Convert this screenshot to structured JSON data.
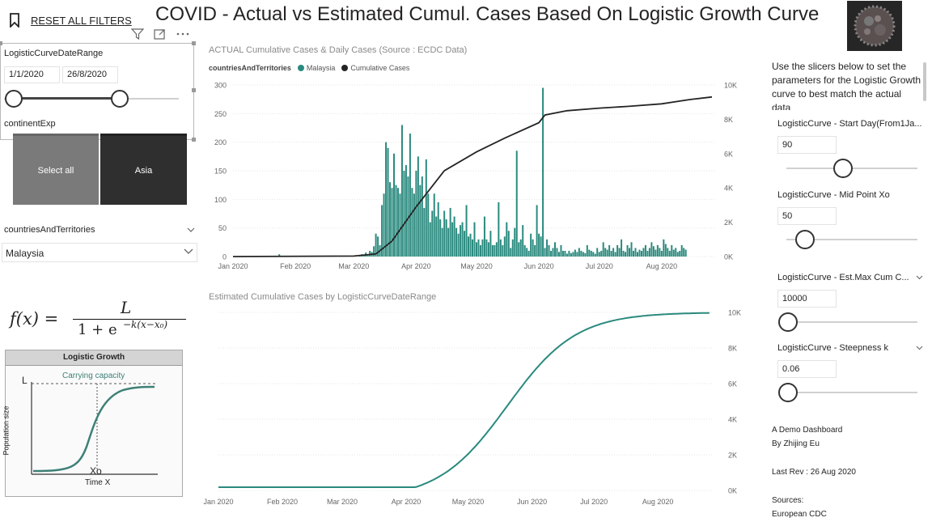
{
  "header": {
    "reset_label": "RESET ALL FILTERS",
    "title": "COVID - Actual vs Estimated Cumul. Cases Based On Logistic Growth Curve"
  },
  "date_slicer": {
    "title": "LogisticCurveDateRange",
    "start_date": "1/1/2020",
    "end_date": "26/8/2020"
  },
  "continent_slicer": {
    "title": "continentExp",
    "tiles": [
      "Select all",
      "Asia"
    ]
  },
  "country_slicer": {
    "title": "countriesAndTerritories",
    "selected": "Malaysia"
  },
  "formula": {
    "lhs": "f(x) =",
    "numerator": "L",
    "denominator": "1 + e",
    "exponent": "−k(x−x₀)"
  },
  "logistic_diagram": {
    "title": "Logistic Growth",
    "carrying_capacity": "Carrying capacity",
    "L": "L",
    "y_label": "Population size",
    "x_label": "Time X",
    "midpoint": "Xo"
  },
  "actual_chart": {
    "title": "ACTUAL Cumulative Cases & Daily Cases (Source : ECDC Data)",
    "legend_title": "countriesAndTerritories",
    "legend": [
      {
        "name": "Malaysia",
        "color": "#2a8a7e"
      },
      {
        "name": "Cumulative Cases",
        "color": "#252423"
      }
    ]
  },
  "estimated_chart": {
    "title": "Estimated Cumulative Cases by LogisticCurveDateRange"
  },
  "chart_data": [
    {
      "type": "bar",
      "title": "ACTUAL Cumulative Cases & Daily Cases (Source : ECDC Data)",
      "x_ticks": [
        "Jan 2020",
        "Feb 2020",
        "Mar 2020",
        "Apr 2020",
        "May 2020",
        "Jun 2020",
        "Jul 2020",
        "Aug 2020"
      ],
      "y_ticks": [
        "0",
        "50",
        "100",
        "150",
        "200",
        "250",
        "300"
      ],
      "y2_ticks": [
        "0K",
        "2K",
        "4K",
        "6K",
        "8K",
        "10K"
      ],
      "ylim": [
        0,
        300
      ],
      "y2lim": [
        0,
        10000
      ],
      "series": [
        {
          "name": "Malaysia",
          "type": "bar",
          "color": "#2a8a7e",
          "x_start": "2020-01-01",
          "values": [
            0,
            0,
            0,
            0,
            0,
            0,
            0,
            0,
            0,
            0,
            0,
            0,
            0,
            0,
            0,
            0,
            0,
            0,
            0,
            0,
            0,
            0,
            0,
            4,
            0,
            0,
            0,
            0,
            0,
            0,
            0,
            0,
            0,
            0,
            0,
            0,
            0,
            0,
            0,
            0,
            0,
            0,
            0,
            0,
            0,
            0,
            0,
            0,
            0,
            0,
            0,
            0,
            0,
            0,
            0,
            0,
            0,
            0,
            0,
            0,
            0,
            2,
            0,
            1,
            4,
            3,
            7,
            2,
            10,
            8,
            18,
            40,
            35,
            20,
            90,
            110,
            200,
            190,
            130,
            120,
            180,
            125,
            120,
            110,
            230,
            150,
            160,
            140,
            215,
            120,
            110,
            150,
            175,
            125,
            140,
            85,
            170,
            110,
            60,
            80,
            110,
            70,
            95,
            65,
            50,
            80,
            65,
            50,
            85,
            60,
            70,
            50,
            40,
            55,
            60,
            45,
            90,
            35,
            40,
            30,
            60,
            25,
            30,
            20,
            30,
            70,
            30,
            25,
            45,
            20,
            20,
            25,
            95,
            30,
            20,
            35,
            60,
            45,
            15,
            30,
            50,
            185,
            25,
            30,
            55,
            20,
            15,
            10,
            40,
            30,
            20,
            90,
            40,
            35,
            295,
            15,
            30,
            20,
            10,
            15,
            25,
            15,
            8,
            20,
            10,
            10,
            5,
            10,
            6,
            8,
            12,
            8,
            15,
            10,
            8,
            6,
            20,
            12,
            10,
            8,
            5,
            15,
            8,
            10,
            25,
            15,
            12,
            20,
            10,
            15,
            8,
            20,
            15,
            30,
            10,
            8,
            20,
            15,
            25,
            10,
            15,
            8,
            12,
            10,
            15,
            20,
            10,
            15,
            25,
            18,
            12,
            20,
            15,
            10,
            30,
            22,
            15,
            10,
            20,
            12,
            15,
            8,
            10,
            20,
            15,
            12
          ]
        },
        {
          "name": "Cumulative Cases",
          "type": "line",
          "color": "#252423",
          "axis": "y2",
          "points": [
            [
              "2020-01-01",
              0
            ],
            [
              "2020-03-01",
              30
            ],
            [
              "2020-03-12",
              150
            ],
            [
              "2020-03-20",
              900
            ],
            [
              "2020-04-01",
              2900
            ],
            [
              "2020-04-15",
              5000
            ],
            [
              "2020-05-01",
              6100
            ],
            [
              "2020-05-15",
              6900
            ],
            [
              "2020-06-01",
              7800
            ],
            [
              "2020-06-04",
              8250
            ],
            [
              "2020-06-15",
              8500
            ],
            [
              "2020-07-01",
              8650
            ],
            [
              "2020-07-15",
              8750
            ],
            [
              "2020-08-01",
              8900
            ],
            [
              "2020-08-15",
              9150
            ],
            [
              "2020-08-26",
              9300
            ]
          ]
        }
      ]
    },
    {
      "type": "line",
      "title": "Estimated Cumulative Cases by LogisticCurveDateRange",
      "x_ticks": [
        "Jan 2020",
        "Feb 2020",
        "Mar 2020",
        "Apr 2020",
        "May 2020",
        "Jun 2020",
        "Jul 2020",
        "Aug 2020"
      ],
      "y_ticks": [
        "0K",
        "2K",
        "4K",
        "6K",
        "8K",
        "10K"
      ],
      "ylim": [
        0,
        10000
      ],
      "series": [
        {
          "name": "Estimated",
          "color": "#2a8a7e",
          "params": {
            "start_day": 90,
            "mid_point": 50,
            "max_cum": 10000,
            "k": 0.06
          },
          "x_range": [
            "2020-01-01",
            "2020-08-26"
          ]
        }
      ]
    }
  ],
  "right_panel": {
    "intro": [
      "Use the slicers below to set the",
      "parameters for the Logistic Growth",
      "curve to best match the actual",
      "data"
    ],
    "params": [
      {
        "label": "LogisticCurve - Start Day(From1Ja...",
        "value": "90",
        "fraction": 0.42
      },
      {
        "label": "LogisticCurve - Mid Point Xo",
        "value": "50",
        "fraction": 0.13
      },
      {
        "label": "LogisticCurve - Est.Max Cum C...",
        "value": "10000",
        "fraction": 0.0
      },
      {
        "label": "LogisticCurve - Steepness k",
        "value": "0.06",
        "fraction": 0.0
      }
    ],
    "notes": [
      "A Demo Dashboard",
      "By Zhijing Eu",
      "Last Rev : 26 Aug 2020",
      "Sources:",
      "European CDC"
    ]
  }
}
